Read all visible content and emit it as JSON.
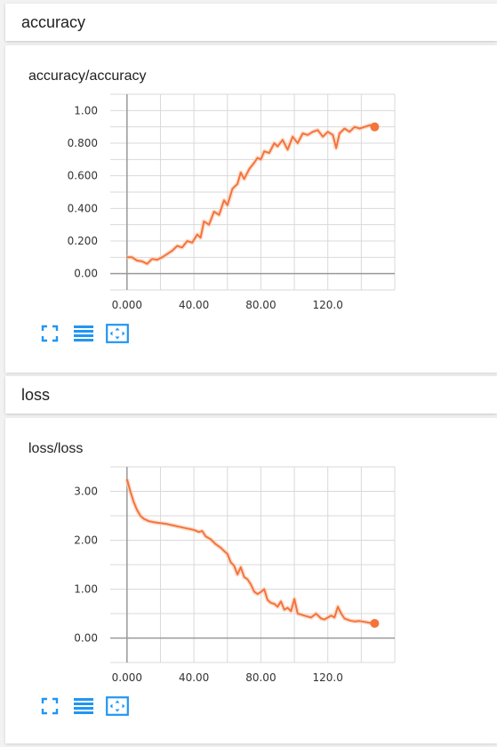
{
  "sections": [
    {
      "header": "accuracy",
      "card_title": "accuracy/accuracy"
    },
    {
      "header": "loss",
      "card_title": "loss/loss"
    }
  ],
  "colors": {
    "series": "#f4743b",
    "series_raw": "#fbd2bd",
    "grid": "#d9d9d9",
    "axis": "#999999",
    "button": "#2196f3"
  },
  "toolbar_icons": [
    "fullscreen-icon",
    "data-table-icon",
    "fit-domain-icon"
  ],
  "chart_data": [
    {
      "type": "line",
      "title": "accuracy/accuracy",
      "xlim": [
        -10,
        160
      ],
      "ylim": [
        -0.1,
        1.1
      ],
      "x_ticks": [
        0,
        40,
        80,
        120
      ],
      "x_tick_labels": [
        "0.000",
        "40.00",
        "80.00",
        "120.0"
      ],
      "y_ticks": [
        0,
        0.2,
        0.4,
        0.6,
        0.8,
        1.0
      ],
      "y_tick_labels": [
        "0.00",
        "0.200",
        "0.400",
        "0.600",
        "0.800",
        "1.00"
      ],
      "grid": true,
      "series": [
        {
          "values": [
            [
              0,
              0.1
            ],
            [
              3,
              0.1
            ],
            [
              6,
              0.08
            ],
            [
              9,
              0.075
            ],
            [
              12,
              0.06
            ],
            [
              15,
              0.09
            ],
            [
              18,
              0.085
            ],
            [
              21,
              0.1
            ],
            [
              24,
              0.12
            ],
            [
              27,
              0.14
            ],
            [
              30,
              0.17
            ],
            [
              33,
              0.16
            ],
            [
              36,
              0.2
            ],
            [
              39,
              0.19
            ],
            [
              42,
              0.24
            ],
            [
              44,
              0.22
            ],
            [
              46,
              0.32
            ],
            [
              49,
              0.3
            ],
            [
              52,
              0.38
            ],
            [
              55,
              0.36
            ],
            [
              58,
              0.45
            ],
            [
              60,
              0.42
            ],
            [
              63,
              0.52
            ],
            [
              66,
              0.55
            ],
            [
              68,
              0.62
            ],
            [
              70,
              0.58
            ],
            [
              73,
              0.64
            ],
            [
              76,
              0.68
            ],
            [
              78,
              0.71
            ],
            [
              80,
              0.7
            ],
            [
              82,
              0.75
            ],
            [
              85,
              0.74
            ],
            [
              88,
              0.8
            ],
            [
              90,
              0.78
            ],
            [
              93,
              0.82
            ],
            [
              96,
              0.76
            ],
            [
              99,
              0.84
            ],
            [
              102,
              0.8
            ],
            [
              105,
              0.86
            ],
            [
              108,
              0.85
            ],
            [
              111,
              0.87
            ],
            [
              114,
              0.88
            ],
            [
              117,
              0.84
            ],
            [
              120,
              0.87
            ],
            [
              123,
              0.85
            ],
            [
              125,
              0.77
            ],
            [
              127,
              0.86
            ],
            [
              130,
              0.89
            ],
            [
              133,
              0.87
            ],
            [
              136,
              0.9
            ],
            [
              139,
              0.89
            ],
            [
              142,
              0.9
            ],
            [
              145,
              0.91
            ],
            [
              148,
              0.9
            ]
          ]
        }
      ]
    },
    {
      "type": "line",
      "title": "loss/loss",
      "xlim": [
        -10,
        160
      ],
      "ylim": [
        -0.5,
        3.5
      ],
      "x_ticks": [
        0,
        40,
        80,
        120
      ],
      "x_tick_labels": [
        "0.000",
        "40.00",
        "80.00",
        "120.0"
      ],
      "y_ticks": [
        0,
        1,
        2,
        3
      ],
      "y_tick_labels": [
        "0.00",
        "1.00",
        "2.00",
        "3.00"
      ],
      "grid": true,
      "series": [
        {
          "values": [
            [
              0,
              3.25
            ],
            [
              2,
              3.0
            ],
            [
              4,
              2.78
            ],
            [
              6,
              2.62
            ],
            [
              8,
              2.5
            ],
            [
              10,
              2.44
            ],
            [
              13,
              2.39
            ],
            [
              16,
              2.37
            ],
            [
              20,
              2.35
            ],
            [
              24,
              2.33
            ],
            [
              28,
              2.3
            ],
            [
              32,
              2.27
            ],
            [
              36,
              2.24
            ],
            [
              40,
              2.21
            ],
            [
              43,
              2.17
            ],
            [
              45,
              2.19
            ],
            [
              47,
              2.08
            ],
            [
              50,
              2.02
            ],
            [
              53,
              1.92
            ],
            [
              56,
              1.85
            ],
            [
              58,
              1.78
            ],
            [
              60,
              1.72
            ],
            [
              62,
              1.55
            ],
            [
              64,
              1.48
            ],
            [
              66,
              1.3
            ],
            [
              68,
              1.45
            ],
            [
              70,
              1.25
            ],
            [
              72,
              1.2
            ],
            [
              74,
              1.1
            ],
            [
              76,
              0.95
            ],
            [
              78,
              0.9
            ],
            [
              80,
              0.94
            ],
            [
              82,
              1.0
            ],
            [
              84,
              0.78
            ],
            [
              86,
              0.72
            ],
            [
              88,
              0.7
            ],
            [
              90,
              0.64
            ],
            [
              92,
              0.75
            ],
            [
              94,
              0.58
            ],
            [
              96,
              0.62
            ],
            [
              98,
              0.55
            ],
            [
              100,
              0.8
            ],
            [
              102,
              0.5
            ],
            [
              104,
              0.48
            ],
            [
              107,
              0.45
            ],
            [
              110,
              0.42
            ],
            [
              113,
              0.5
            ],
            [
              116,
              0.4
            ],
            [
              118,
              0.38
            ],
            [
              120,
              0.42
            ],
            [
              122,
              0.46
            ],
            [
              124,
              0.42
            ],
            [
              126,
              0.64
            ],
            [
              128,
              0.5
            ],
            [
              130,
              0.4
            ],
            [
              133,
              0.36
            ],
            [
              136,
              0.34
            ],
            [
              139,
              0.35
            ],
            [
              142,
              0.33
            ],
            [
              145,
              0.31
            ],
            [
              148,
              0.3
            ]
          ]
        }
      ]
    }
  ]
}
